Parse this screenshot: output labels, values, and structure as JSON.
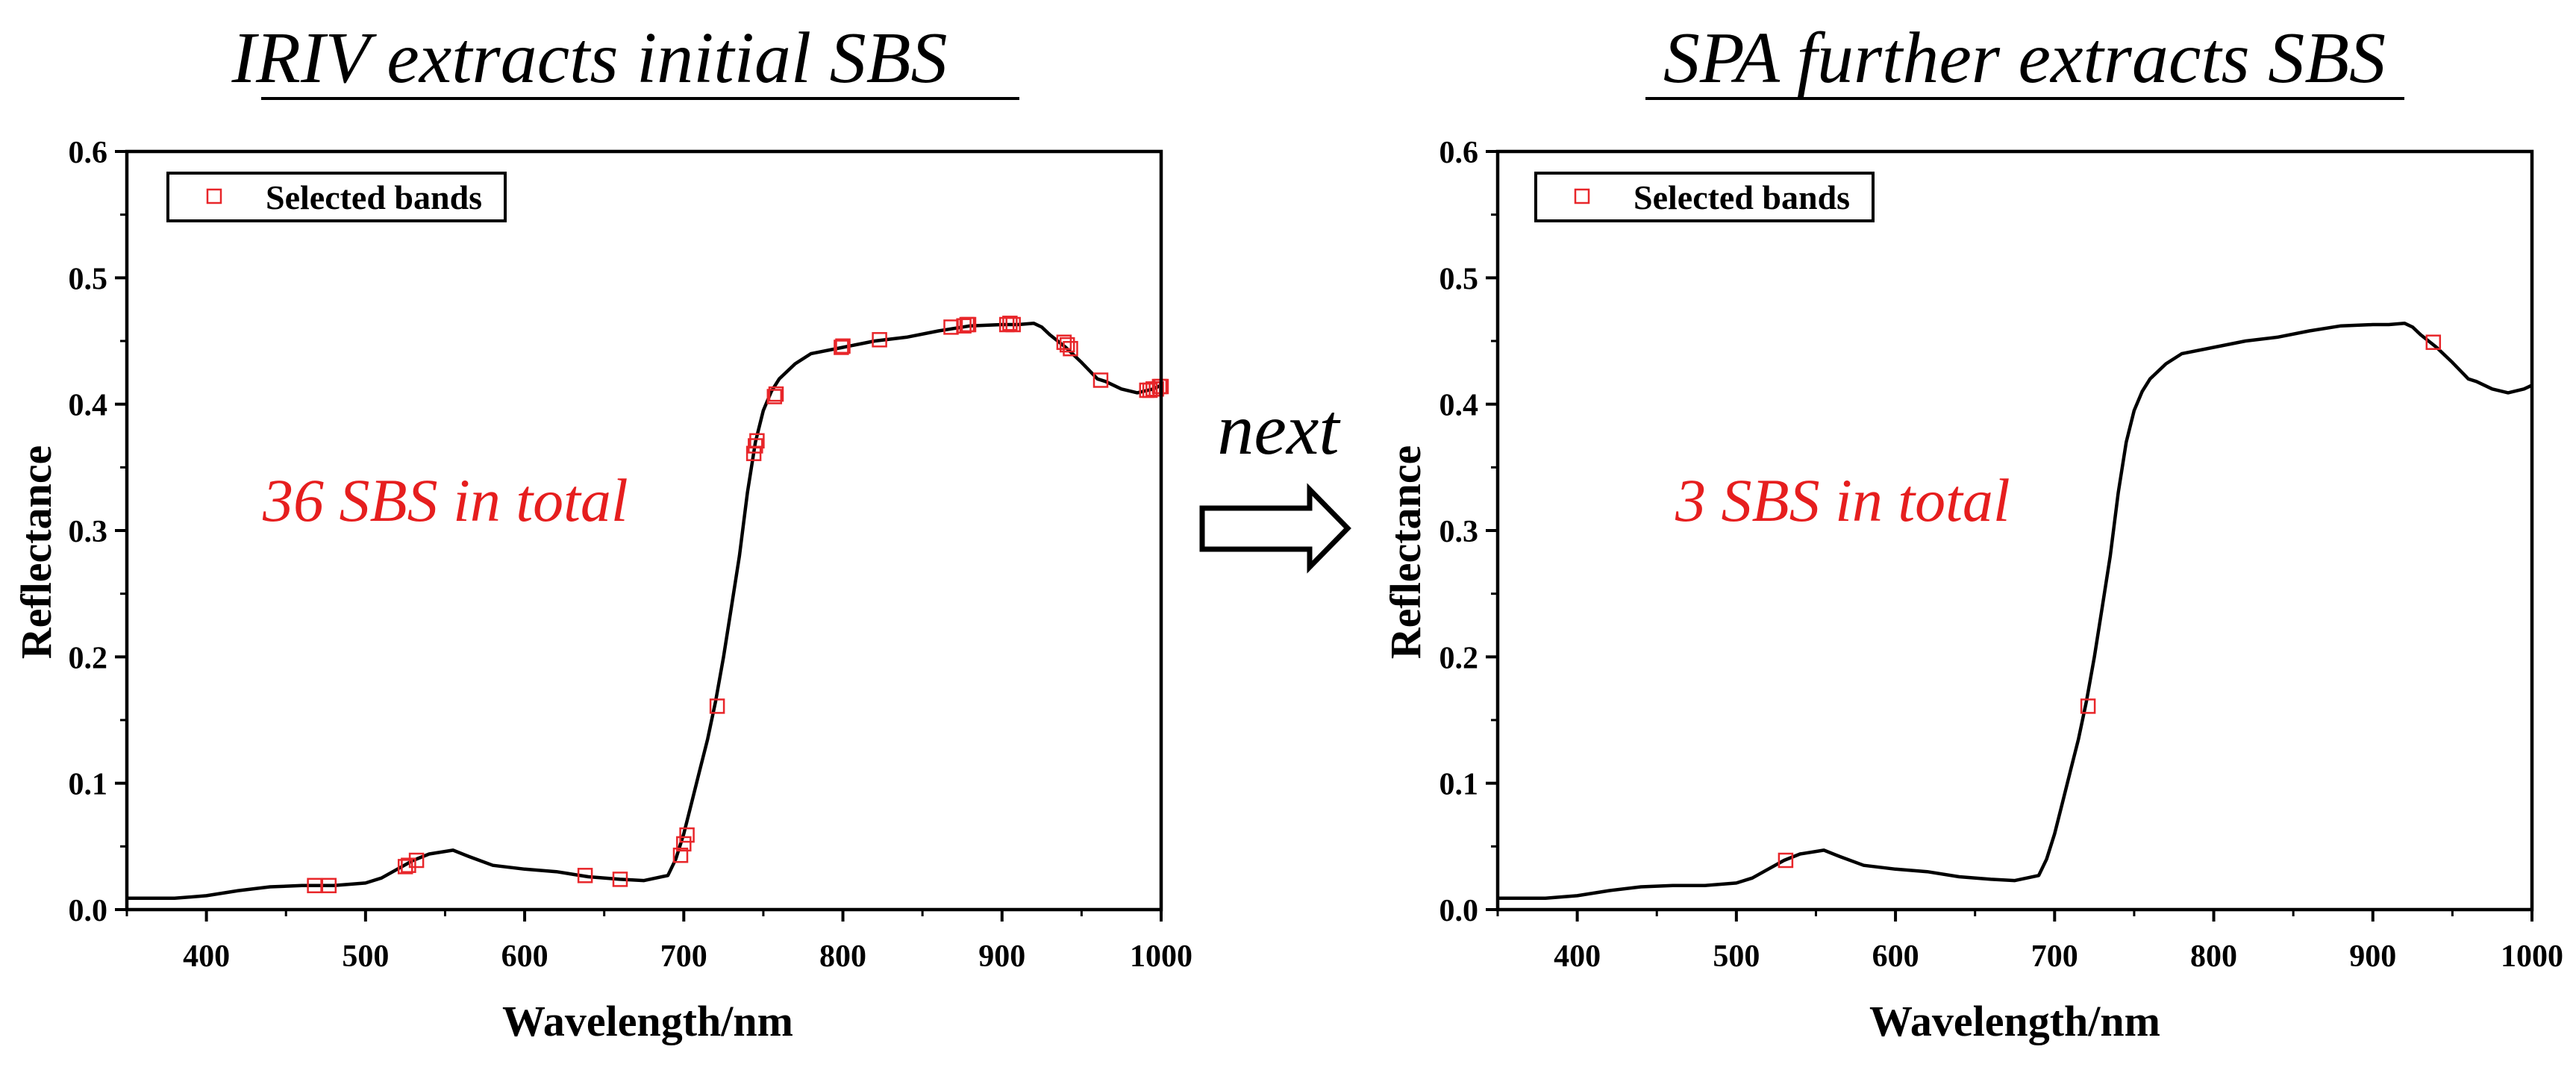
{
  "arrow": {
    "label": "next"
  },
  "chart_data": [
    {
      "type": "line",
      "title": "IRIV extracts initial SBS",
      "xlabel": "Wavelength/nm",
      "ylabel": "Reflectance",
      "xlim": [
        350,
        1000
      ],
      "ylim": [
        0.0,
        0.6
      ],
      "xticks": [
        400,
        500,
        600,
        700,
        800,
        900,
        1000
      ],
      "yticks": [
        0.0,
        0.1,
        0.2,
        0.3,
        0.4,
        0.5,
        0.6
      ],
      "xtick_labels": [
        "400",
        "500",
        "600",
        "700",
        "800",
        "900",
        "1000"
      ],
      "ytick_labels": [
        "0.0",
        "0.1",
        "0.2",
        "0.3",
        "0.4",
        "0.5",
        "0.6"
      ],
      "legend": {
        "label": "Selected bands",
        "position": "top-left"
      },
      "annotation": "36 SBS in total",
      "series": [
        {
          "name": "Reflectance spectrum",
          "x": [
            350,
            380,
            400,
            420,
            440,
            460,
            480,
            500,
            510,
            520,
            530,
            540,
            555,
            565,
            580,
            600,
            620,
            640,
            660,
            675,
            690,
            695,
            700,
            705,
            710,
            715,
            720,
            725,
            730,
            735,
            740,
            745,
            750,
            755,
            760,
            770,
            780,
            800,
            820,
            840,
            860,
            880,
            900,
            910,
            920,
            925,
            930,
            940,
            950,
            960,
            965,
            975,
            985,
            995,
            1000
          ],
          "y": [
            0.009,
            0.009,
            0.011,
            0.015,
            0.018,
            0.019,
            0.019,
            0.021,
            0.025,
            0.032,
            0.039,
            0.044,
            0.047,
            0.042,
            0.035,
            0.032,
            0.03,
            0.026,
            0.024,
            0.023,
            0.027,
            0.04,
            0.06,
            0.085,
            0.11,
            0.135,
            0.165,
            0.2,
            0.24,
            0.28,
            0.33,
            0.37,
            0.395,
            0.41,
            0.42,
            0.432,
            0.44,
            0.445,
            0.45,
            0.453,
            0.458,
            0.462,
            0.463,
            0.463,
            0.464,
            0.461,
            0.455,
            0.445,
            0.433,
            0.42,
            0.418,
            0.412,
            0.409,
            0.412,
            0.415
          ]
        },
        {
          "name": "Selected bands",
          "marker": "square",
          "x": [
            468,
            477,
            525,
            527,
            532,
            638,
            660,
            698,
            700,
            702,
            721,
            744,
            745,
            746,
            757,
            758,
            799,
            800,
            823,
            868,
            876,
            878,
            879,
            903,
            905,
            907,
            939,
            941,
            943,
            962,
            991,
            993,
            995,
            997,
            999,
            1000
          ],
          "y": [
            0.019,
            0.019,
            0.034,
            0.035,
            0.039,
            0.027,
            0.024,
            0.043,
            0.052,
            0.059,
            0.161,
            0.361,
            0.367,
            0.371,
            0.406,
            0.408,
            0.445,
            0.446,
            0.451,
            0.461,
            0.462,
            0.463,
            0.463,
            0.463,
            0.464,
            0.463,
            0.449,
            0.447,
            0.444,
            0.419,
            0.411,
            0.411,
            0.412,
            0.412,
            0.414,
            0.414
          ]
        }
      ]
    },
    {
      "type": "line",
      "title": "SPA further extracts SBS",
      "xlabel": "Wavelength/nm",
      "ylabel": "Reflectance",
      "xlim": [
        350,
        1000
      ],
      "ylim": [
        0.0,
        0.6
      ],
      "xticks": [
        400,
        500,
        600,
        700,
        800,
        900,
        1000
      ],
      "yticks": [
        0.0,
        0.1,
        0.2,
        0.3,
        0.4,
        0.5,
        0.6
      ],
      "xtick_labels": [
        "400",
        "500",
        "600",
        "700",
        "800",
        "900",
        "1000"
      ],
      "ytick_labels": [
        "0.0",
        "0.1",
        "0.2",
        "0.3",
        "0.4",
        "0.5",
        "0.6"
      ],
      "legend": {
        "label": "Selected bands",
        "position": "top-left"
      },
      "annotation": "3 SBS in total",
      "series": [
        {
          "name": "Reflectance spectrum",
          "x": [
            350,
            380,
            400,
            420,
            440,
            460,
            480,
            500,
            510,
            520,
            530,
            540,
            555,
            565,
            580,
            600,
            620,
            640,
            660,
            675,
            690,
            695,
            700,
            705,
            710,
            715,
            720,
            725,
            730,
            735,
            740,
            745,
            750,
            755,
            760,
            770,
            780,
            800,
            820,
            840,
            860,
            880,
            900,
            910,
            920,
            925,
            930,
            940,
            950,
            960,
            965,
            975,
            985,
            995,
            1000
          ],
          "y": [
            0.009,
            0.009,
            0.011,
            0.015,
            0.018,
            0.019,
            0.019,
            0.021,
            0.025,
            0.032,
            0.039,
            0.044,
            0.047,
            0.042,
            0.035,
            0.032,
            0.03,
            0.026,
            0.024,
            0.023,
            0.027,
            0.04,
            0.06,
            0.085,
            0.11,
            0.135,
            0.165,
            0.2,
            0.24,
            0.28,
            0.33,
            0.37,
            0.395,
            0.41,
            0.42,
            0.432,
            0.44,
            0.445,
            0.45,
            0.453,
            0.458,
            0.462,
            0.463,
            0.463,
            0.464,
            0.461,
            0.455,
            0.445,
            0.433,
            0.42,
            0.418,
            0.412,
            0.409,
            0.412,
            0.415
          ]
        },
        {
          "name": "Selected bands",
          "marker": "square",
          "x": [
            531,
            721,
            938
          ],
          "y": [
            0.039,
            0.161,
            0.449
          ]
        }
      ]
    }
  ],
  "colors": {
    "line": "#000000",
    "marker": "#e8262a",
    "annotation": "#e61e1e",
    "text": "#000000"
  }
}
